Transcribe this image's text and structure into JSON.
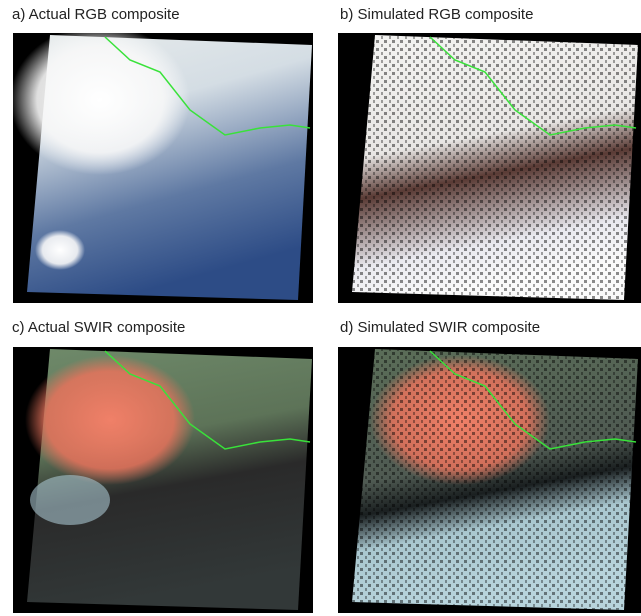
{
  "panels": [
    {
      "label": "a) Actual RGB composite"
    },
    {
      "label": "b) Simulated RGB composite"
    },
    {
      "label": "c) Actual SWIR composite"
    },
    {
      "label": "d) Simulated SWIR composite"
    }
  ]
}
